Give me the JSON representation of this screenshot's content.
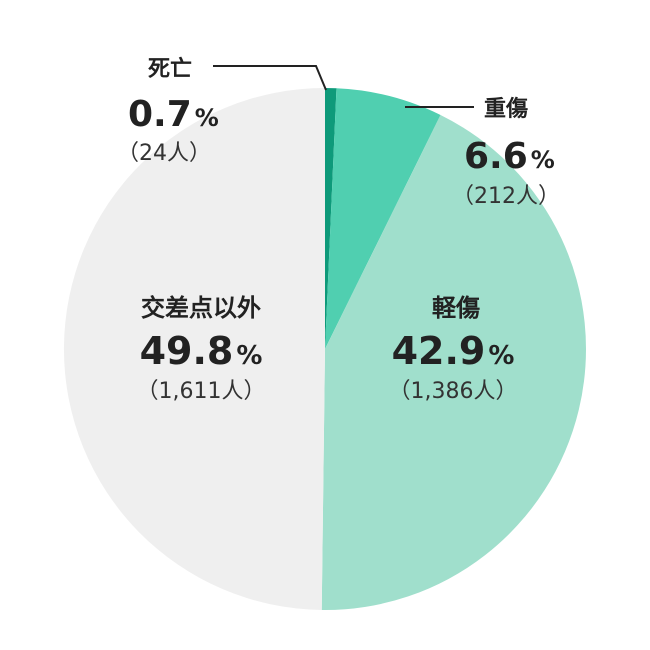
{
  "chart_data": {
    "type": "pie",
    "slices": [
      {
        "label": "死亡",
        "percent": 0.7,
        "percent_text": "0.7",
        "unit": "%",
        "count_text": "（24人）",
        "count": 24,
        "color": "#0e9a7a"
      },
      {
        "label": "重傷",
        "percent": 6.6,
        "percent_text": "6.6",
        "unit": "%",
        "count_text": "（212人）",
        "count": 212,
        "color": "#50cfb0"
      },
      {
        "label": "軽傷",
        "percent": 42.9,
        "percent_text": "42.9",
        "unit": "%",
        "count_text": "（1,386人）",
        "count": 1386,
        "color": "#a0dfcc"
      },
      {
        "label": "交差点以外",
        "percent": 49.8,
        "percent_text": "49.8",
        "unit": "%",
        "count_text": "（1,611人）",
        "count": 1611,
        "color": "#efefef"
      }
    ]
  }
}
